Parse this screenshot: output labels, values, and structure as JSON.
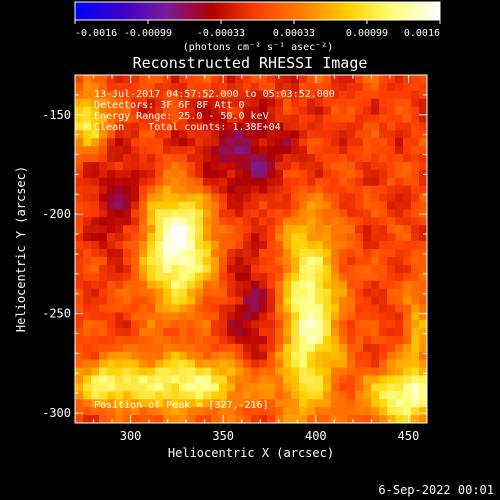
{
  "colorbar": {
    "ticks": [
      "-0.0016",
      "-0.00099",
      "-0.00033",
      "0.00033",
      "0.00099",
      "0.0016"
    ],
    "unit_label": "(photons cm⁻² s⁻¹ asec⁻²)",
    "stops": [
      "#0000ff",
      "#3a00c8",
      "#7a1a9a",
      "#b00000",
      "#ff4000",
      "#ff8000",
      "#ffd000",
      "#ffff80",
      "#ffffff"
    ]
  },
  "chart_data": {
    "type": "heatmap",
    "title": "Reconstructed RHESSI Image",
    "xlabel": "Heliocentric X (arcsec)",
    "ylabel": "Heliocentric Y (arcsec)",
    "xlim": [
      270,
      460
    ],
    "ylim": [
      -305,
      -130
    ],
    "xticks": [
      "300",
      "350",
      "400",
      "450"
    ],
    "yticks": [
      "-150",
      "-200",
      "-250",
      "-300"
    ],
    "info_lines": [
      "13-Jul-2017 04:57:52.000 to 05:03:52.000",
      "Detectors: 3F 6F 8F Att 0",
      "Energy Range: 25.0 - 50.0 keV",
      "Clean    Total counts: 1.38E+04"
    ],
    "peak_text": "Position of Peak = [327,-216]",
    "peak": [
      327,
      -216
    ],
    "sources": [
      {
        "x": 325,
        "y": -215,
        "sx": 14,
        "sy": 22,
        "amp": 1.0
      },
      {
        "x": 395,
        "y": -250,
        "sx": 12,
        "sy": 35,
        "amp": 0.9
      },
      {
        "x": 330,
        "y": -285,
        "sx": 28,
        "sy": 10,
        "amp": 0.75
      },
      {
        "x": 448,
        "y": -292,
        "sx": 15,
        "sy": 10,
        "amp": 0.8
      },
      {
        "x": 285,
        "y": -285,
        "sx": 12,
        "sy": 8,
        "amp": 0.5
      },
      {
        "x": 277,
        "y": -152,
        "sx": 8,
        "sy": 10,
        "amp": 0.7
      },
      {
        "x": 455,
        "y": -260,
        "sx": 5,
        "sy": 20,
        "amp": 0.4
      }
    ]
  },
  "footer": {
    "date": "6-Sep-2022 00:01"
  }
}
